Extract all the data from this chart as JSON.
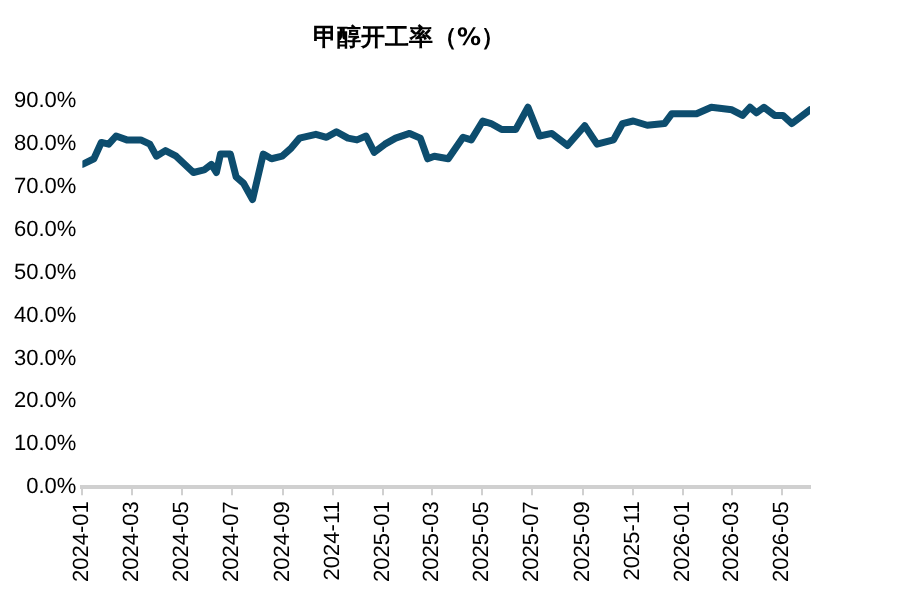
{
  "chart_data": {
    "type": "line",
    "title": "甲醇开工率（%）",
    "x": [
      "2024-01-01",
      "2024-01-15",
      "2024-01-24",
      "2024-02-02",
      "2024-02-11",
      "2024-02-24",
      "2024-03-12",
      "2024-03-23",
      "2024-03-31",
      "2024-04-11",
      "2024-04-24",
      "2024-05-15",
      "2024-05-28",
      "2024-06-06",
      "2024-06-12",
      "2024-06-17",
      "2024-06-29",
      "2024-07-06",
      "2024-07-15",
      "2024-07-26",
      "2024-08-08",
      "2024-08-18",
      "2024-08-31",
      "2024-09-11",
      "2024-09-21",
      "2024-10-11",
      "2024-10-24",
      "2024-11-05",
      "2024-11-19",
      "2024-11-30",
      "2024-12-11",
      "2024-12-21",
      "2025-01-03",
      "2025-01-16",
      "2025-02-02",
      "2025-02-15",
      "2025-02-24",
      "2025-03-04",
      "2025-03-21",
      "2025-04-08",
      "2025-04-18",
      "2025-05-02",
      "2025-05-12",
      "2025-05-25",
      "2025-06-11",
      "2025-06-26",
      "2025-07-10",
      "2025-07-25",
      "2025-08-13",
      "2025-09-03",
      "2025-09-18",
      "2025-10-08",
      "2025-10-19",
      "2025-11-01",
      "2025-11-18",
      "2025-12-09",
      "2025-12-18",
      "2026-01-17",
      "2026-02-04",
      "2026-03-01",
      "2026-03-14",
      "2026-03-23",
      "2026-03-31",
      "2026-04-09",
      "2026-04-22",
      "2026-05-02",
      "2026-05-13",
      "2026-06-04"
    ],
    "series": [
      {
        "color": "#0d4d6e",
        "values": [
          75.2,
          76.5,
          80.3,
          79.9,
          81.8,
          80.9,
          80.9,
          79.9,
          77.1,
          78.4,
          77.1,
          73.3,
          73.9,
          75.2,
          73.3,
          77.6,
          77.6,
          72.3,
          70.8,
          67.0,
          77.6,
          76.5,
          77.1,
          79.0,
          81.3,
          82.2,
          81.5,
          82.8,
          81.3,
          80.9,
          81.8,
          78.0,
          79.9,
          81.3,
          82.4,
          81.3,
          76.5,
          77.1,
          76.5,
          81.5,
          80.9,
          85.3,
          84.7,
          83.3,
          83.3,
          88.5,
          81.8,
          82.4,
          79.6,
          84.2,
          79.9,
          80.9,
          84.7,
          85.3,
          84.3,
          84.7,
          87.0,
          87.0,
          88.5,
          87.9,
          86.6,
          88.5,
          87.2,
          88.5,
          86.6,
          86.6,
          84.7,
          87.9
        ]
      }
    ],
    "xlim": [
      "2024-01-01",
      "2026-06-04"
    ],
    "xticks": [
      "2024-01",
      "2024-03",
      "2024-05",
      "2024-07",
      "2024-09",
      "2024-11",
      "2025-01",
      "2025-03",
      "2025-05",
      "2025-07",
      "2025-09",
      "2025-11",
      "2026-01",
      "2026-03",
      "2026-05"
    ],
    "ylim": [
      0,
      90
    ],
    "yticks": [
      {
        "value": 0,
        "label": "0.0%"
      },
      {
        "value": 10,
        "label": "10.0%"
      },
      {
        "value": 20,
        "label": "20.0%"
      },
      {
        "value": 30,
        "label": "30.0%"
      },
      {
        "value": 40,
        "label": "40.0%"
      },
      {
        "value": 50,
        "label": "50.0%"
      },
      {
        "value": 60,
        "label": "60.0%"
      },
      {
        "value": 70,
        "label": "70.0%"
      },
      {
        "value": 80,
        "label": "80.0%"
      },
      {
        "value": 90,
        "label": "90.0%"
      }
    ],
    "grid": false,
    "legend": false,
    "marker": "none",
    "line_style": "solid"
  }
}
